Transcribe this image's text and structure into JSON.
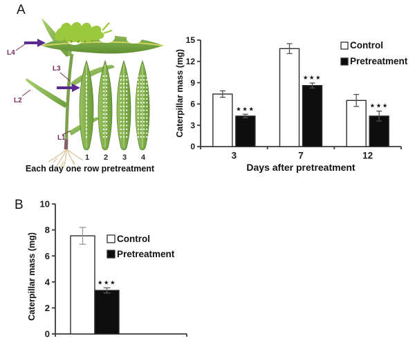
{
  "figure": {
    "panel_a_label": "A",
    "panel_b_label": "B"
  },
  "illustration": {
    "leaf_labels": [
      "L1",
      "L2",
      "L3",
      "L4"
    ],
    "row_numbers": [
      "1",
      "2",
      "3",
      "4"
    ],
    "dot_rows_per_leaf": [
      1,
      2,
      3,
      4
    ],
    "caption": "Each day one row pretreatment",
    "colors": {
      "arrow_purple": "#5a2b8e",
      "leaf_label_maroon": "#7d2b5e",
      "leaf_green_light": "#9dc465",
      "leaf_green_dark": "#6d9c3d",
      "caterpillar_green": "#9cc83e",
      "midrib_yellow": "#cfd45e",
      "root_tan": "#d8c59c"
    }
  },
  "chart_data": [
    {
      "id": "panel-a-chart",
      "type": "bar",
      "categories": [
        "3",
        "7",
        "12"
      ],
      "series": [
        {
          "name": "Control",
          "fill": "#ffffff",
          "values": [
            7.4,
            13.8,
            6.5
          ],
          "errors": [
            0.45,
            0.7,
            0.85
          ]
        },
        {
          "name": "Pretreatment",
          "fill": "#0d0d0d",
          "values": [
            4.3,
            8.6,
            4.3
          ],
          "errors": [
            0.25,
            0.35,
            0.7
          ]
        }
      ],
      "significance": {
        "series": "Pretreatment",
        "labels": [
          "★★★",
          "★★★",
          "★★★"
        ],
        "meaning": "***"
      },
      "xlabel": "Days after pretreatment",
      "ylabel": "Caterpillar mass (mg)",
      "ylim": [
        0,
        15
      ],
      "yticks": [
        0,
        3,
        6,
        9,
        12,
        15
      ],
      "legend": {
        "position": "top-right",
        "entries": [
          "Control",
          "Pretreatment"
        ]
      }
    },
    {
      "id": "panel-b-chart",
      "type": "bar",
      "categories": [
        ""
      ],
      "series": [
        {
          "name": "Control",
          "fill": "#ffffff",
          "values": [
            7.55
          ],
          "errors": [
            0.65
          ]
        },
        {
          "name": "Pretreatment",
          "fill": "#0d0d0d",
          "values": [
            3.35
          ],
          "errors": [
            0.2
          ]
        }
      ],
      "significance": {
        "series": "Pretreatment",
        "labels": [
          "★★★"
        ],
        "meaning": "***"
      },
      "xlabel": "",
      "ylabel": "Caterpillar mass (mg)",
      "ylim": [
        0,
        10
      ],
      "yticks": [
        0,
        2,
        4,
        6,
        8,
        10
      ],
      "legend": {
        "position": "right",
        "entries": [
          "Control",
          "Pretreatment"
        ]
      }
    }
  ]
}
